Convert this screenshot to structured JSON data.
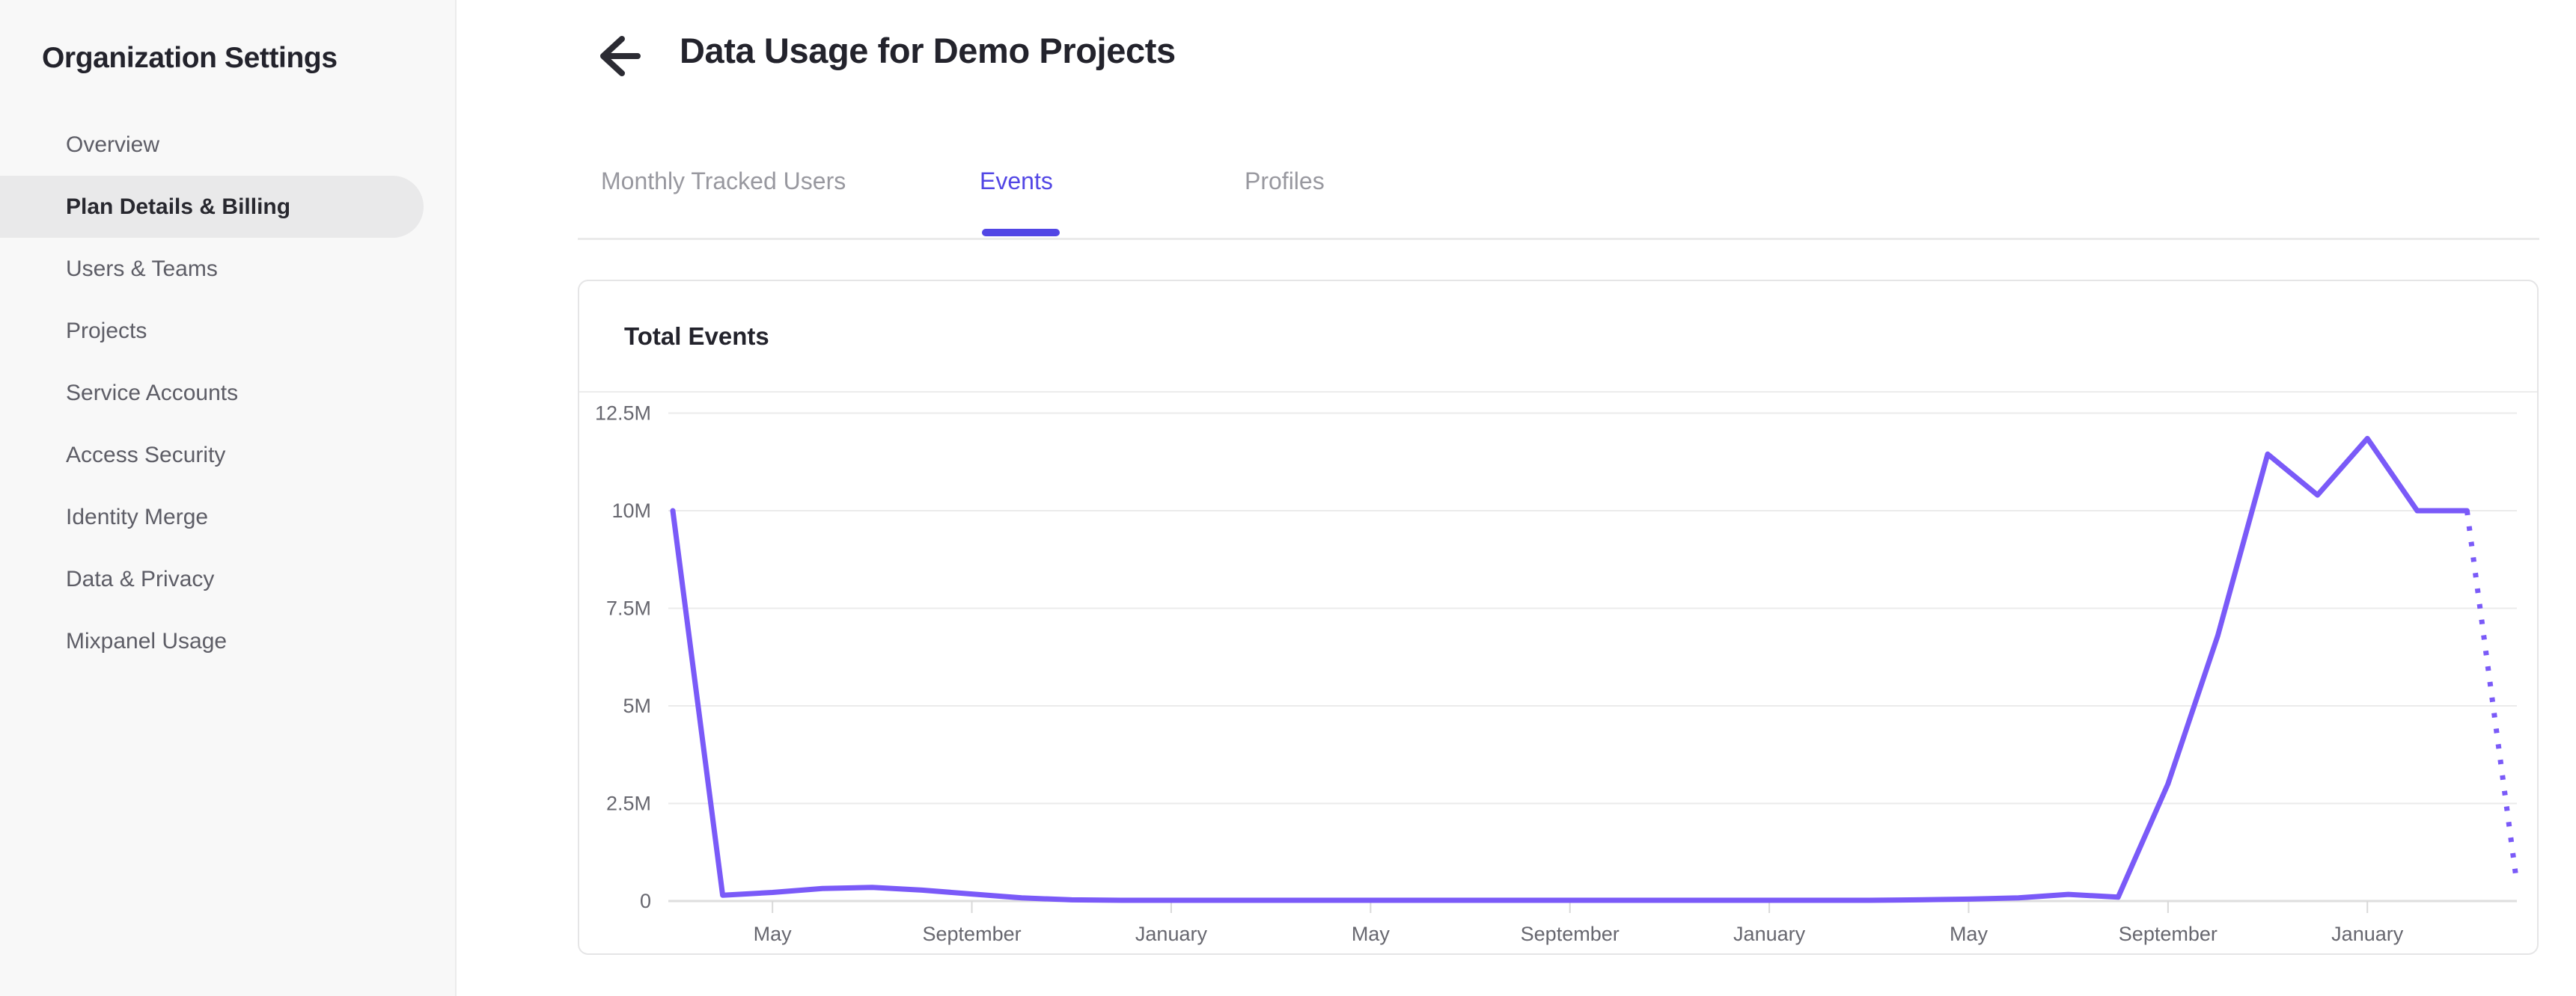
{
  "sidebar": {
    "title": "Organization Settings",
    "items": [
      {
        "label": "Overview",
        "selected": false
      },
      {
        "label": "Plan Details & Billing",
        "selected": true
      },
      {
        "label": "Users & Teams",
        "selected": false
      },
      {
        "label": "Projects",
        "selected": false
      },
      {
        "label": "Service Accounts",
        "selected": false
      },
      {
        "label": "Access Security",
        "selected": false
      },
      {
        "label": "Identity Merge",
        "selected": false
      },
      {
        "label": "Data & Privacy",
        "selected": false
      },
      {
        "label": "Mixpanel Usage",
        "selected": false
      }
    ]
  },
  "header": {
    "title": "Data Usage for Demo Projects",
    "back_icon": "arrow-left-icon"
  },
  "tabs": [
    {
      "label": "Monthly Tracked Users",
      "active": false
    },
    {
      "label": "Events",
      "active": true
    },
    {
      "label": "Profiles",
      "active": false
    }
  ],
  "card": {
    "title": "Total Events"
  },
  "chart_data": {
    "type": "line",
    "title": "Total Events",
    "ylabel": "",
    "xlabel": "",
    "ylim_millions": [
      0,
      12.5
    ],
    "grid": "horizontal",
    "legend": "none",
    "y_ticks": [
      {
        "label": "12.5M",
        "value_millions": 12.5
      },
      {
        "label": "10M",
        "value_millions": 10
      },
      {
        "label": "7.5M",
        "value_millions": 7.5
      },
      {
        "label": "5M",
        "value_millions": 5
      },
      {
        "label": "2.5M",
        "value_millions": 2.5
      },
      {
        "label": "0",
        "value_millions": 0
      }
    ],
    "x_tick_labels": [
      "May",
      "September",
      "January",
      "May",
      "September",
      "January",
      "May",
      "September",
      "January"
    ],
    "x_tick_month_indices": [
      2,
      6,
      10,
      14,
      18,
      22,
      26,
      30,
      34
    ],
    "series": [
      {
        "name": "Total Events",
        "color": "#7a5af8",
        "unit": "events (millions)",
        "values_millions": [
          10.0,
          0.15,
          0.22,
          0.32,
          0.35,
          0.28,
          0.18,
          0.08,
          0.03,
          0.02,
          0.02,
          0.02,
          0.02,
          0.02,
          0.02,
          0.02,
          0.02,
          0.02,
          0.02,
          0.02,
          0.02,
          0.02,
          0.02,
          0.02,
          0.02,
          0.03,
          0.05,
          0.08,
          0.17,
          0.1,
          3.0,
          6.8,
          11.45,
          10.4,
          11.85,
          10.0,
          10.0,
          0.45
        ],
        "last_segment_style": "dotted-projection"
      }
    ]
  },
  "colors": {
    "accent_purple": "#5246e5",
    "line_purple": "#7a5af8",
    "sidebar_bg": "#f8f8f8",
    "selected_pill": "#e9e9ea",
    "grid_line": "#ebebeb",
    "axis_line": "#dedede",
    "axis_text": "#67676f",
    "inactive_tab_text": "#98989f",
    "dark_text": "#23232c",
    "nav_text": "#5d5d66"
  }
}
